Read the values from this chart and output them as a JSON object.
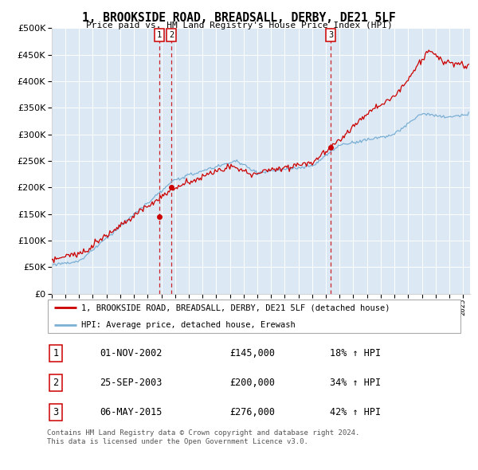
{
  "title": "1, BROOKSIDE ROAD, BREADSALL, DERBY, DE21 5LF",
  "subtitle": "Price paid vs. HM Land Registry's House Price Index (HPI)",
  "ytick_values": [
    0,
    50000,
    100000,
    150000,
    200000,
    250000,
    300000,
    350000,
    400000,
    450000,
    500000
  ],
  "ylim": [
    0,
    500000
  ],
  "xlim_start": 1995.0,
  "xlim_end": 2025.5,
  "red_color": "#cc0000",
  "blue_color": "#7bafd4",
  "bg_color": "#dce9f5",
  "sale_dates": [
    2002.833,
    2003.733,
    2015.35
  ],
  "sale_prices": [
    145000,
    200000,
    276000
  ],
  "sale_labels": [
    "1",
    "2",
    "3"
  ],
  "legend_red": "1, BROOKSIDE ROAD, BREADSALL, DERBY, DE21 5LF (detached house)",
  "legend_blue": "HPI: Average price, detached house, Erewash",
  "table_entries": [
    {
      "num": "1",
      "date": "01-NOV-2002",
      "price": "£145,000",
      "change": "18% ↑ HPI"
    },
    {
      "num": "2",
      "date": "25-SEP-2003",
      "price": "£200,000",
      "change": "34% ↑ HPI"
    },
    {
      "num": "3",
      "date": "06-MAY-2015",
      "price": "£276,000",
      "change": "42% ↑ HPI"
    }
  ],
  "footer": "Contains HM Land Registry data © Crown copyright and database right 2024.\nThis data is licensed under the Open Government Licence v3.0."
}
